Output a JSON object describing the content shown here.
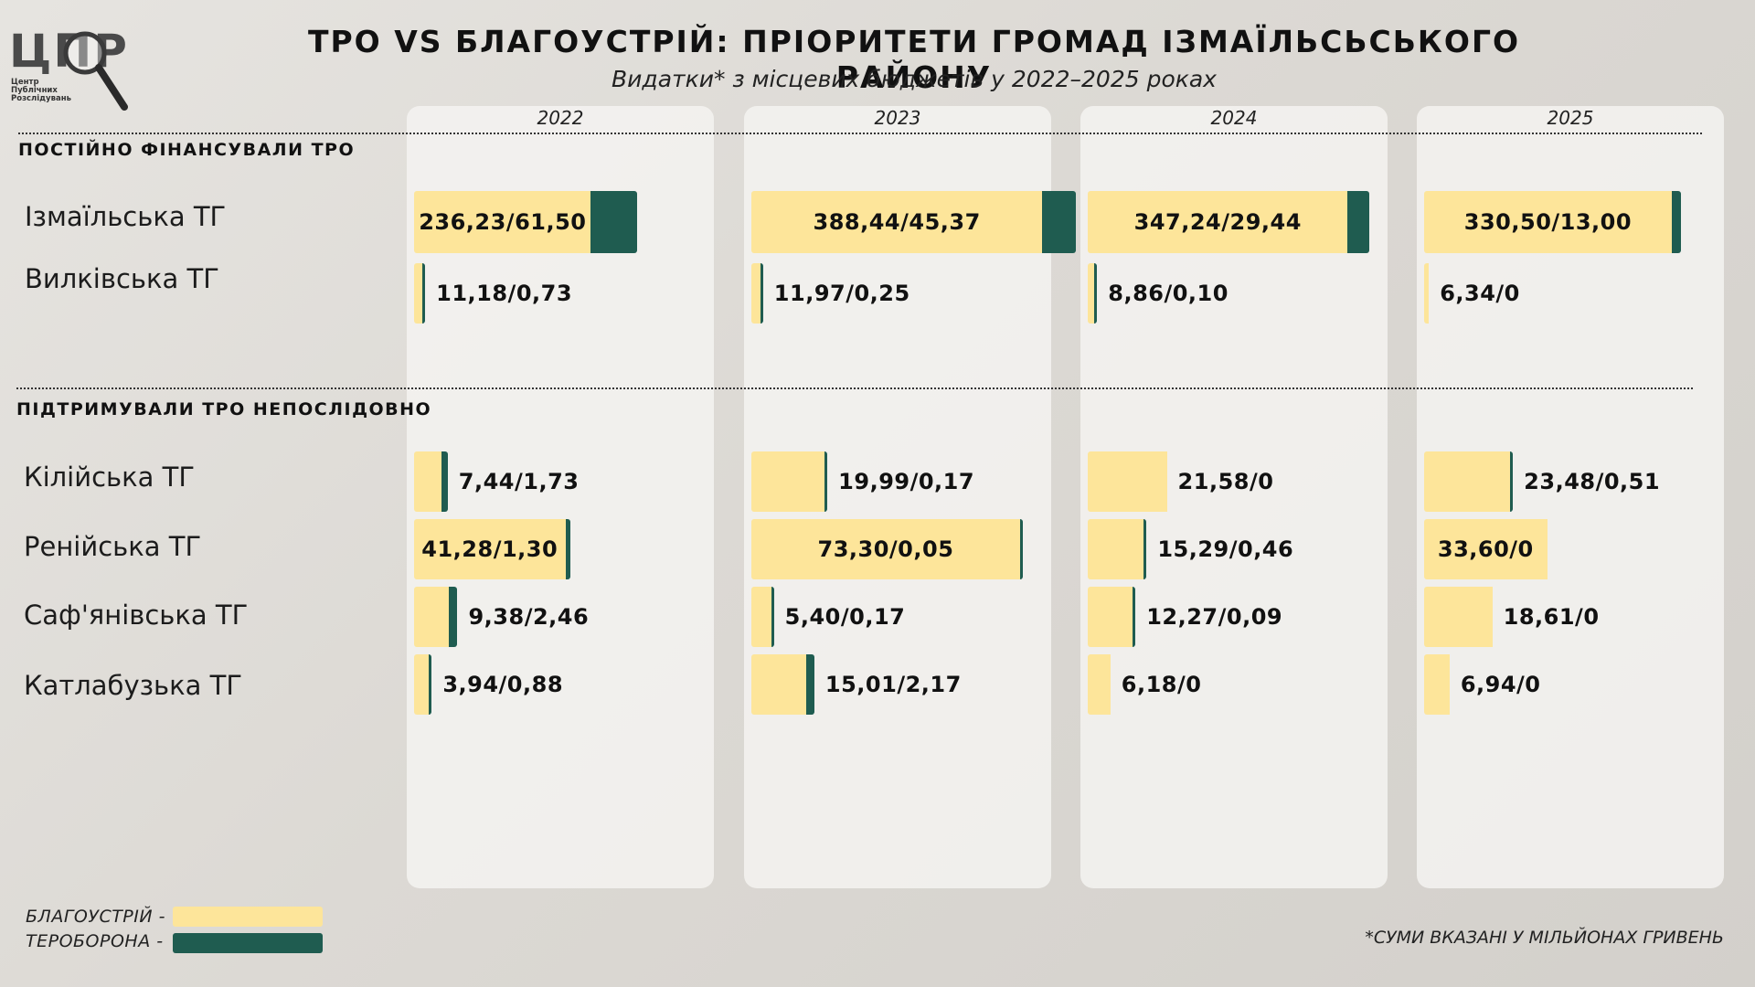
{
  "logo": {
    "letters": "ЦПР",
    "lines": [
      "Центр",
      "Публічних",
      "Розслідувань"
    ]
  },
  "colors": {
    "blagoustrii": "#fde59a",
    "teroborona": "#1f5c50"
  },
  "legend": {
    "items": [
      "БЛАГОУСТРІЙ -",
      "ТЕРОБОРОНА -"
    ]
  },
  "footnote": "*СУМИ ВКАЗАНІ У МІЛЬЙОНАХ ГРИВЕНЬ",
  "chart_data": {
    "type": "bar",
    "title": "ТРО VS БЛАГОУСТРІЙ: ПРІОРИТЕТИ ГРОМАД ІЗМАЇЛЬСЬСЬКОГО РАЙОНУ",
    "subtitle": "Видатки* з місцевих бюджетів у 2022–2025 роках",
    "years": [
      "2022",
      "2023",
      "2024",
      "2025"
    ],
    "series_names": [
      "БЛАГОУСТРІЙ",
      "ТЕРОБОРОНА"
    ],
    "sections": [
      {
        "title": "ПОСТІЙНО ФІНАНСУВАЛИ ТРО",
        "scale_max": 388.44,
        "rows": [
          {
            "name": "Ізмаїльська ТГ",
            "blagoustrii": [
              236.23,
              388.44,
              347.24,
              330.5
            ],
            "tro": [
              61.5,
              45.37,
              29.44,
              13.0
            ],
            "labels": [
              "236,23/61,50",
              "388,44/45,37",
              "347,24/29,44",
              "330,50/13,00"
            ]
          },
          {
            "name": "Вилківська ТГ",
            "blagoustrii": [
              11.18,
              11.97,
              8.86,
              6.34
            ],
            "tro": [
              0.73,
              0.25,
              0.1,
              0
            ],
            "labels": [
              "11,18/0,73",
              "11,97/0,25",
              "8,86/0,10",
              "6,34/0"
            ]
          }
        ]
      },
      {
        "title": "ПІДТРИМУВАЛИ ТРО НЕПОСЛІДОВНО",
        "scale_max": 73.3,
        "rows": [
          {
            "name": "Кілійська ТГ",
            "blagoustrii": [
              7.44,
              19.99,
              21.58,
              23.48
            ],
            "tro": [
              1.73,
              0.17,
              0,
              0.51
            ],
            "labels": [
              "7,44/1,73",
              "19,99/0,17",
              "21,58/0",
              "23,48/0,51"
            ]
          },
          {
            "name": "Ренійська ТГ",
            "blagoustrii": [
              41.28,
              73.3,
              15.29,
              33.6
            ],
            "tro": [
              1.3,
              0.05,
              0.46,
              0
            ],
            "labels": [
              "41,28/1,30",
              "73,30/0,05",
              "15,29/0,46",
              "33,60/0"
            ]
          },
          {
            "name": "Саф'янівська ТГ",
            "blagoustrii": [
              9.38,
              5.4,
              12.27,
              18.61
            ],
            "tro": [
              2.46,
              0.17,
              0.09,
              0
            ],
            "labels": [
              "9,38/2,46",
              "5,40/0,17",
              "12,27/0,09",
              "18,61/0"
            ]
          },
          {
            "name": "Катлабузька ТГ",
            "blagoustrii": [
              3.94,
              15.01,
              6.18,
              6.94
            ],
            "tro": [
              0.88,
              2.17,
              0,
              0
            ],
            "labels": [
              "3,94/0,88",
              "15,01/2,17",
              "6,18/0",
              "6,94/0"
            ]
          }
        ]
      }
    ]
  }
}
